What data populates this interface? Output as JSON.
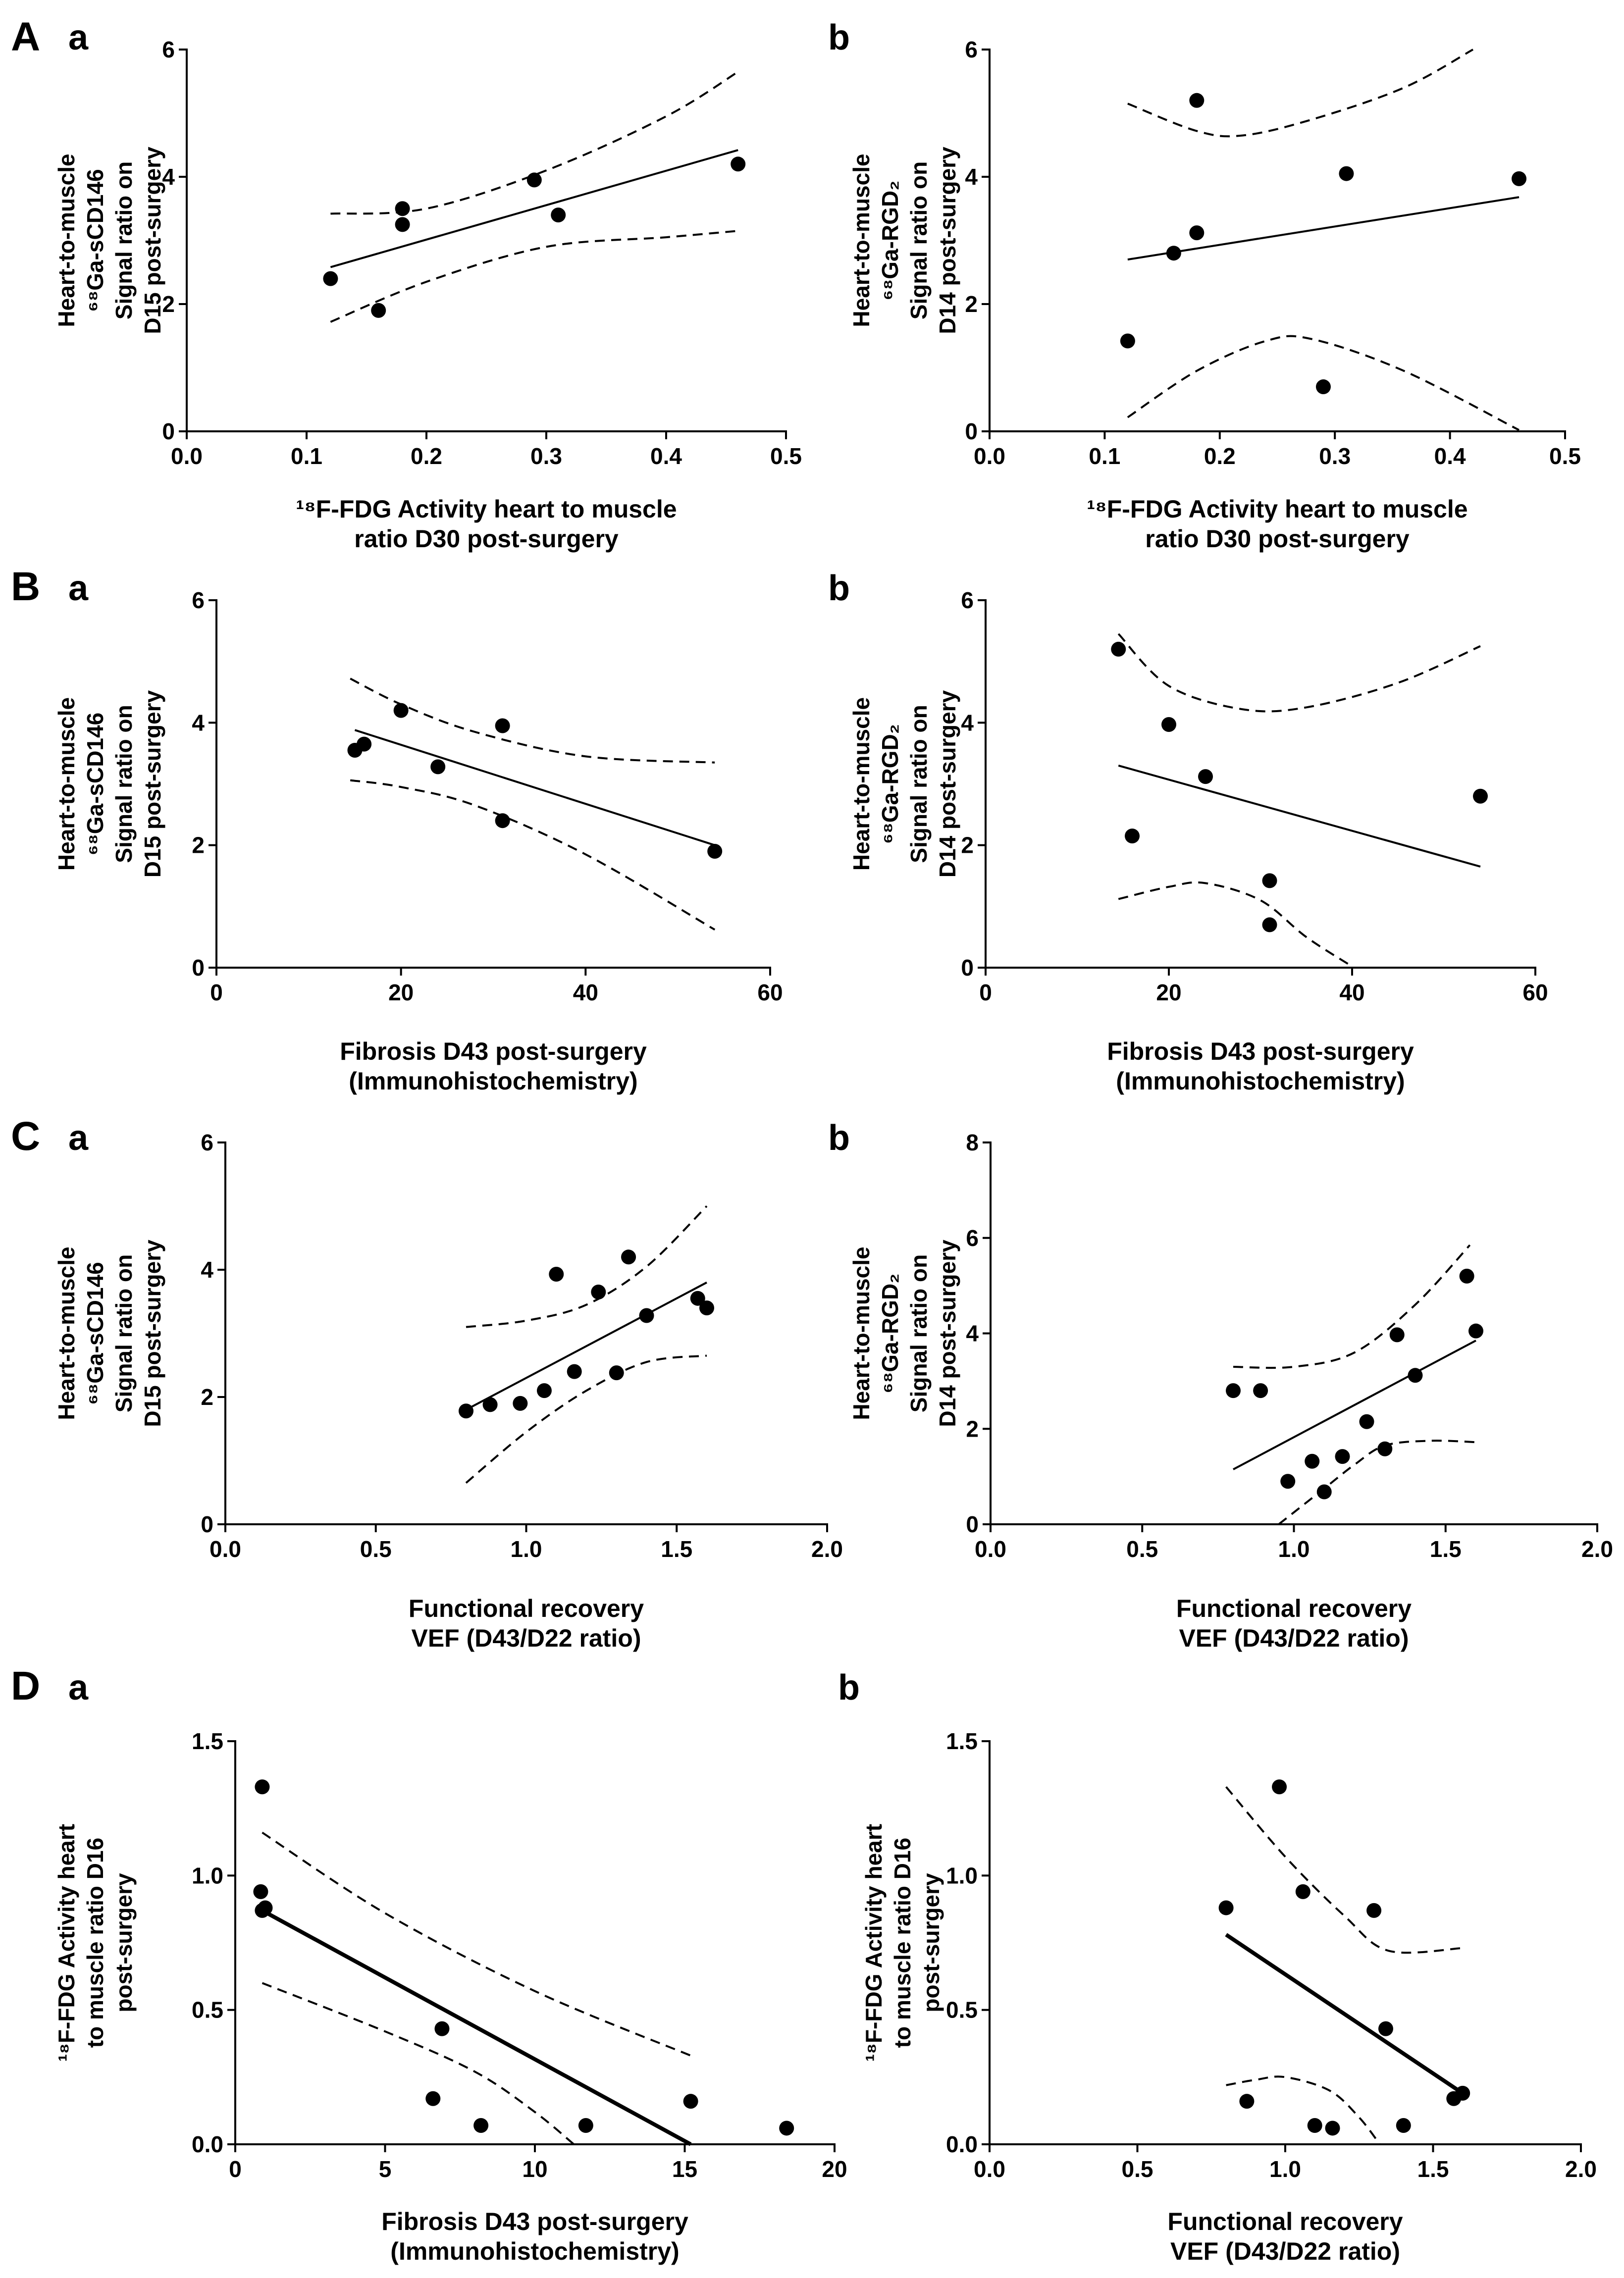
{
  "figure": {
    "row_labels": [
      "A",
      "B",
      "C",
      "D"
    ],
    "sub_labels": [
      "a",
      "b"
    ]
  },
  "chart_data": [
    {
      "id": "Aa",
      "type": "scatter",
      "xlabel": [
        "¹⁸F-FDG Activity heart to muscle",
        "ratio D30 post-surgery"
      ],
      "ylabel": [
        "Heart-to-muscle",
        "⁶⁸Ga-sCD146",
        "Signal ratio on",
        "D15 post-surgery"
      ],
      "xlim": [
        0,
        0.5
      ],
      "ylim": [
        0,
        6
      ],
      "xticks": [
        0,
        0.1,
        0.2,
        0.3,
        0.4,
        0.5
      ],
      "xtick_labels": [
        "0.0",
        "0.1",
        "0.2",
        "0.3",
        "0.4",
        "0.5"
      ],
      "yticks": [
        0,
        2,
        4,
        6
      ],
      "ytick_labels": [
        "0",
        "2",
        "4",
        "6"
      ],
      "points": [
        [
          0.12,
          2.4
        ],
        [
          0.16,
          1.9
        ],
        [
          0.18,
          3.5
        ],
        [
          0.18,
          3.25
        ],
        [
          0.29,
          3.95
        ],
        [
          0.31,
          3.4
        ],
        [
          0.46,
          4.2
        ]
      ],
      "fit": [
        [
          0.12,
          2.58
        ],
        [
          0.46,
          4.42
        ]
      ],
      "ci_upper": [
        [
          0.12,
          3.42
        ],
        [
          0.2,
          3.5
        ],
        [
          0.3,
          4.1
        ],
        [
          0.4,
          4.95
        ],
        [
          0.46,
          5.65
        ]
      ],
      "ci_lower": [
        [
          0.12,
          1.72
        ],
        [
          0.2,
          2.35
        ],
        [
          0.3,
          2.9
        ],
        [
          0.4,
          3.05
        ],
        [
          0.46,
          3.15
        ]
      ],
      "fit_width": 4
    },
    {
      "id": "Ab",
      "type": "scatter",
      "xlabel": [
        "¹⁸F-FDG Activity heart to muscle",
        "ratio D30 post-surgery"
      ],
      "ylabel": [
        "Heart-to-muscle",
        "⁶⁸Ga-RGD₂",
        "Signal ratio on",
        "D14 post-surgery"
      ],
      "xlim": [
        0,
        0.5
      ],
      "ylim": [
        0,
        6
      ],
      "xticks": [
        0,
        0.1,
        0.2,
        0.3,
        0.4,
        0.5
      ],
      "xtick_labels": [
        "0.0",
        "0.1",
        "0.2",
        "0.3",
        "0.4",
        "0.5"
      ],
      "yticks": [
        0,
        2,
        4,
        6
      ],
      "ytick_labels": [
        "0",
        "2",
        "4",
        "6"
      ],
      "points": [
        [
          0.12,
          1.42
        ],
        [
          0.16,
          2.8
        ],
        [
          0.18,
          3.12
        ],
        [
          0.18,
          5.2
        ],
        [
          0.29,
          0.7
        ],
        [
          0.31,
          4.05
        ],
        [
          0.46,
          3.97
        ]
      ],
      "fit": [
        [
          0.12,
          2.7
        ],
        [
          0.46,
          3.68
        ]
      ],
      "ci_upper": [
        [
          0.12,
          5.15
        ],
        [
          0.18,
          4.72
        ],
        [
          0.22,
          4.65
        ],
        [
          0.28,
          4.9
        ],
        [
          0.36,
          5.4
        ],
        [
          0.42,
          6.0
        ]
      ],
      "ci_lower": [
        [
          0.12,
          0.22
        ],
        [
          0.18,
          0.95
        ],
        [
          0.24,
          1.42
        ],
        [
          0.28,
          1.45
        ],
        [
          0.36,
          0.95
        ],
        [
          0.46,
          0.02
        ]
      ],
      "fit_width": 4
    },
    {
      "id": "Ba",
      "type": "scatter",
      "xlabel": [
        "Fibrosis D43 post-surgery",
        "(Immunohistochemistry)"
      ],
      "ylabel": [
        "Heart-to-muscle",
        "⁶⁸Ga-sCD146",
        "Signal ratio on",
        "D15 post-surgery"
      ],
      "xlim": [
        0,
        60
      ],
      "ylim": [
        0,
        6
      ],
      "xticks": [
        0,
        20,
        40,
        60
      ],
      "xtick_labels": [
        "0",
        "20",
        "40",
        "60"
      ],
      "yticks": [
        0,
        2,
        4,
        6
      ],
      "ytick_labels": [
        "0",
        "2",
        "4",
        "6"
      ],
      "points": [
        [
          15,
          3.55
        ],
        [
          16,
          3.65
        ],
        [
          20,
          4.2
        ],
        [
          24,
          3.28
        ],
        [
          31,
          2.4
        ],
        [
          31,
          3.95
        ],
        [
          54,
          1.9
        ]
      ],
      "fit": [
        [
          15,
          3.88
        ],
        [
          54,
          2.0
        ]
      ],
      "ci_upper": [
        [
          14.5,
          4.72
        ],
        [
          20,
          4.3
        ],
        [
          28,
          3.85
        ],
        [
          40,
          3.45
        ],
        [
          54,
          3.35
        ]
      ],
      "ci_lower": [
        [
          14.5,
          3.06
        ],
        [
          20,
          2.95
        ],
        [
          28,
          2.65
        ],
        [
          40,
          1.85
        ],
        [
          54,
          0.62
        ]
      ],
      "fit_width": 4
    },
    {
      "id": "Bb",
      "type": "scatter",
      "xlabel": [
        "Fibrosis D43 post-surgery",
        "(Immunohistochemistry)"
      ],
      "ylabel": [
        "Heart-to-muscle",
        "⁶⁸Ga-RGD₂",
        "Signal ratio on",
        "D14 post-surgery"
      ],
      "xlim": [
        0,
        60
      ],
      "ylim": [
        0,
        6
      ],
      "xticks": [
        0,
        20,
        40,
        60
      ],
      "xtick_labels": [
        "0",
        "20",
        "40",
        "60"
      ],
      "yticks": [
        0,
        2,
        4,
        6
      ],
      "ytick_labels": [
        "0",
        "2",
        "4",
        "6"
      ],
      "points": [
        [
          14.5,
          5.2
        ],
        [
          16,
          2.15
        ],
        [
          20,
          3.97
        ],
        [
          24,
          3.12
        ],
        [
          31,
          1.42
        ],
        [
          31,
          0.7
        ],
        [
          54,
          2.8
        ]
      ],
      "fit": [
        [
          14.5,
          3.3
        ],
        [
          54,
          1.65
        ]
      ],
      "ci_upper": [
        [
          14.5,
          5.45
        ],
        [
          20,
          4.6
        ],
        [
          28,
          4.22
        ],
        [
          35,
          4.25
        ],
        [
          45,
          4.65
        ],
        [
          54,
          5.25
        ]
      ],
      "ci_lower": [
        [
          14.5,
          1.12
        ],
        [
          20,
          1.32
        ],
        [
          24,
          1.38
        ],
        [
          30,
          1.1
        ],
        [
          35,
          0.5
        ],
        [
          40,
          0.02
        ]
      ],
      "fit_width": 4
    },
    {
      "id": "Ca",
      "type": "scatter",
      "xlabel": [
        "Functional recovery",
        "VEF (D43/D22 ratio)"
      ],
      "ylabel": [
        "Heart-to-muscle",
        "⁶⁸Ga-sCD146",
        "Signal ratio on",
        "D15 post-surgery"
      ],
      "xlim": [
        0,
        2
      ],
      "ylim": [
        0,
        6
      ],
      "xticks": [
        0,
        0.5,
        1,
        1.5,
        2
      ],
      "xtick_labels": [
        "0.0",
        "0.5",
        "1.0",
        "1.5",
        "2.0"
      ],
      "yticks": [
        0,
        2,
        4,
        6
      ],
      "ytick_labels": [
        "0",
        "2",
        "4",
        "6"
      ],
      "points": [
        [
          0.8,
          1.78
        ],
        [
          0.88,
          1.88
        ],
        [
          0.98,
          1.9
        ],
        [
          1.06,
          2.1
        ],
        [
          1.1,
          3.93
        ],
        [
          1.16,
          2.4
        ],
        [
          1.24,
          3.65
        ],
        [
          1.3,
          2.38
        ],
        [
          1.34,
          4.2
        ],
        [
          1.4,
          3.28
        ],
        [
          1.57,
          3.55
        ],
        [
          1.6,
          3.4
        ]
      ],
      "fit": [
        [
          0.8,
          1.8
        ],
        [
          1.6,
          3.8
        ]
      ],
      "ci_upper": [
        [
          0.8,
          3.1
        ],
        [
          1.0,
          3.2
        ],
        [
          1.2,
          3.45
        ],
        [
          1.4,
          4.05
        ],
        [
          1.6,
          5.0
        ]
      ],
      "ci_lower": [
        [
          0.8,
          0.65
        ],
        [
          1.0,
          1.45
        ],
        [
          1.2,
          2.1
        ],
        [
          1.4,
          2.55
        ],
        [
          1.6,
          2.65
        ]
      ],
      "fit_width": 4
    },
    {
      "id": "Cb",
      "type": "scatter",
      "xlabel": [
        "Functional recovery",
        "VEF (D43/D22 ratio)"
      ],
      "ylabel": [
        "Heart-to-muscle",
        "⁶⁸Ga-RGD₂",
        "Signal ratio on",
        "D14 post-surgery"
      ],
      "xlim": [
        0,
        2
      ],
      "ylim": [
        0,
        8
      ],
      "xticks": [
        0,
        0.5,
        1,
        1.5,
        2
      ],
      "xtick_labels": [
        "0.0",
        "0.5",
        "1.0",
        "1.5",
        "2.0"
      ],
      "yticks": [
        0,
        2,
        4,
        6,
        8
      ],
      "ytick_labels": [
        "0",
        "2",
        "4",
        "6",
        "8"
      ],
      "points": [
        [
          0.8,
          2.8
        ],
        [
          0.89,
          2.8
        ],
        [
          0.98,
          0.9
        ],
        [
          1.06,
          1.32
        ],
        [
          1.1,
          0.68
        ],
        [
          1.16,
          1.42
        ],
        [
          1.24,
          2.15
        ],
        [
          1.3,
          1.58
        ],
        [
          1.34,
          3.97
        ],
        [
          1.4,
          3.12
        ],
        [
          1.57,
          5.2
        ],
        [
          1.6,
          4.05
        ]
      ],
      "fit": [
        [
          0.8,
          1.15
        ],
        [
          1.6,
          3.85
        ]
      ],
      "ci_upper": [
        [
          0.8,
          3.3
        ],
        [
          1.0,
          3.3
        ],
        [
          1.2,
          3.6
        ],
        [
          1.4,
          4.6
        ],
        [
          1.58,
          5.85
        ]
      ],
      "ci_lower": [
        [
          0.95,
          0.0
        ],
        [
          1.1,
          0.75
        ],
        [
          1.2,
          1.25
        ],
        [
          1.3,
          1.65
        ],
        [
          1.45,
          1.75
        ],
        [
          1.6,
          1.72
        ]
      ],
      "fit_width": 4
    },
    {
      "id": "Da",
      "type": "scatter",
      "xlabel": [
        "Fibrosis D43 post-surgery",
        "(Immunohistochemistry)"
      ],
      "ylabel": [
        "¹⁸F-FDG Activity heart",
        "to muscle ratio D16",
        "post-surgery"
      ],
      "xlim": [
        0,
        20
      ],
      "ylim": [
        0,
        1.5
      ],
      "xticks": [
        0,
        5,
        10,
        15,
        20
      ],
      "xtick_labels": [
        "0",
        "5",
        "10",
        "15",
        "20"
      ],
      "yticks": [
        0,
        0.5,
        1,
        1.5
      ],
      "ytick_labels": [
        "0.0",
        "0.5",
        "1.0",
        "1.5"
      ],
      "points": [
        [
          0.9,
          1.33
        ],
        [
          0.85,
          0.94
        ],
        [
          0.9,
          0.87
        ],
        [
          1.0,
          0.88
        ],
        [
          6.6,
          0.17
        ],
        [
          6.9,
          0.43
        ],
        [
          8.2,
          0.07
        ],
        [
          11.7,
          0.07
        ],
        [
          15.2,
          0.16
        ],
        [
          18.4,
          0.06
        ]
      ],
      "fit": [
        [
          0.9,
          0.87
        ],
        [
          15.2,
          0.0
        ]
      ],
      "ci_upper": [
        [
          0.9,
          1.16
        ],
        [
          5,
          0.86
        ],
        [
          10,
          0.57
        ],
        [
          15.2,
          0.33
        ]
      ],
      "ci_lower": [
        [
          0.9,
          0.6
        ],
        [
          5,
          0.42
        ],
        [
          8,
          0.27
        ],
        [
          10,
          0.12
        ],
        [
          11.3,
          0.0
        ]
      ],
      "fit_width": 8
    },
    {
      "id": "Db",
      "type": "scatter",
      "xlabel": [
        "Functional recovery",
        "VEF (D43/D22 ratio)"
      ],
      "ylabel": [
        "¹⁸F-FDG Activity heart",
        "to muscle ratio D16",
        "post-surgery"
      ],
      "xlim": [
        0,
        2
      ],
      "ylim": [
        0,
        1.5
      ],
      "xticks": [
        0,
        0.5,
        1,
        1.5,
        2
      ],
      "xtick_labels": [
        "0.0",
        "0.5",
        "1.0",
        "1.5",
        "2.0"
      ],
      "yticks": [
        0,
        0.5,
        1,
        1.5
      ],
      "ytick_labels": [
        "0.0",
        "0.5",
        "1.0",
        "1.5"
      ],
      "points": [
        [
          0.8,
          0.88
        ],
        [
          0.87,
          0.16
        ],
        [
          0.98,
          1.33
        ],
        [
          1.06,
          0.94
        ],
        [
          1.1,
          0.07
        ],
        [
          1.16,
          0.06
        ],
        [
          1.3,
          0.87
        ],
        [
          1.34,
          0.43
        ],
        [
          1.4,
          0.07
        ],
        [
          1.57,
          0.17
        ],
        [
          1.6,
          0.19
        ]
      ],
      "fit": [
        [
          0.8,
          0.78
        ],
        [
          1.6,
          0.19
        ]
      ],
      "ci_upper": [
        [
          0.8,
          1.33
        ],
        [
          1.0,
          1.07
        ],
        [
          1.2,
          0.85
        ],
        [
          1.35,
          0.72
        ],
        [
          1.6,
          0.73
        ]
      ],
      "ci_lower": [
        [
          0.8,
          0.22
        ],
        [
          0.9,
          0.24
        ],
        [
          1.0,
          0.25
        ],
        [
          1.15,
          0.2
        ],
        [
          1.25,
          0.1
        ],
        [
          1.32,
          0.0
        ]
      ],
      "fit_width": 8
    }
  ]
}
